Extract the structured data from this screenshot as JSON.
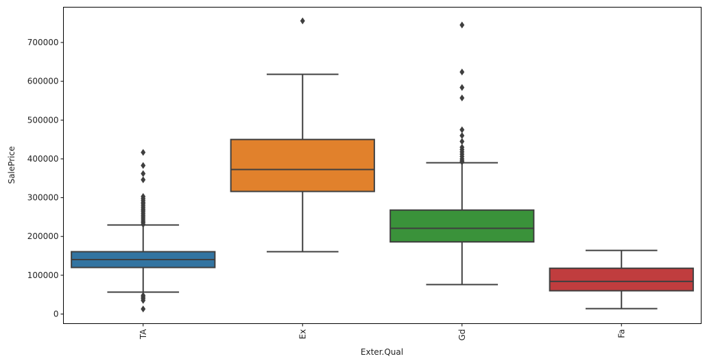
{
  "chart_data": {
    "type": "box",
    "title": "",
    "xlabel": "Exter.Qual",
    "ylabel": "SalePrice",
    "ylim": [
      -24700,
      791000
    ],
    "yticks": [
      0,
      100000,
      200000,
      300000,
      400000,
      500000,
      600000,
      700000
    ],
    "ytick_labels": [
      "0",
      "100000",
      "200000",
      "300000",
      "400000",
      "500000",
      "600000",
      "700000"
    ],
    "grid": false,
    "categories": [
      "TA",
      "Ex",
      "Gd",
      "Fa"
    ],
    "colors": [
      "#3274a1",
      "#e1812c",
      "#3a923a",
      "#c03d3e"
    ],
    "line_color": "#3f3f3f",
    "boxes": [
      {
        "category": "TA",
        "whisker_low": 56500,
        "q1": 120000,
        "median": 140400,
        "q3": 160700,
        "whisker_high": 229500,
        "outliers": [
          416700,
          383000,
          362000,
          346000,
          303000,
          298000,
          293000,
          288000,
          284000,
          279000,
          274000,
          269000,
          265000,
          260000,
          255000,
          250000,
          245000,
          240000,
          236000,
          231000,
          48000,
          44000,
          40000,
          35000,
          13000
        ]
      },
      {
        "category": "Ex",
        "whisker_low": 160700,
        "q1": 316000,
        "median": 372500,
        "q3": 450000,
        "whisker_high": 618000,
        "outliers": [
          755600
        ]
      },
      {
        "category": "Gd",
        "whisker_low": 76000,
        "q1": 186000,
        "median": 221000,
        "q3": 268000,
        "whisker_high": 390000,
        "outliers": [
          745000,
          624000,
          584000,
          557000,
          475000,
          460000,
          445000,
          430000,
          424000,
          418000,
          412000,
          406000,
          400000,
          395000,
          392000
        ]
      },
      {
        "category": "Fa",
        "whisker_low": 14000,
        "q1": 60000,
        "median": 84000,
        "q3": 118000,
        "whisker_high": 164000,
        "outliers": []
      }
    ]
  }
}
